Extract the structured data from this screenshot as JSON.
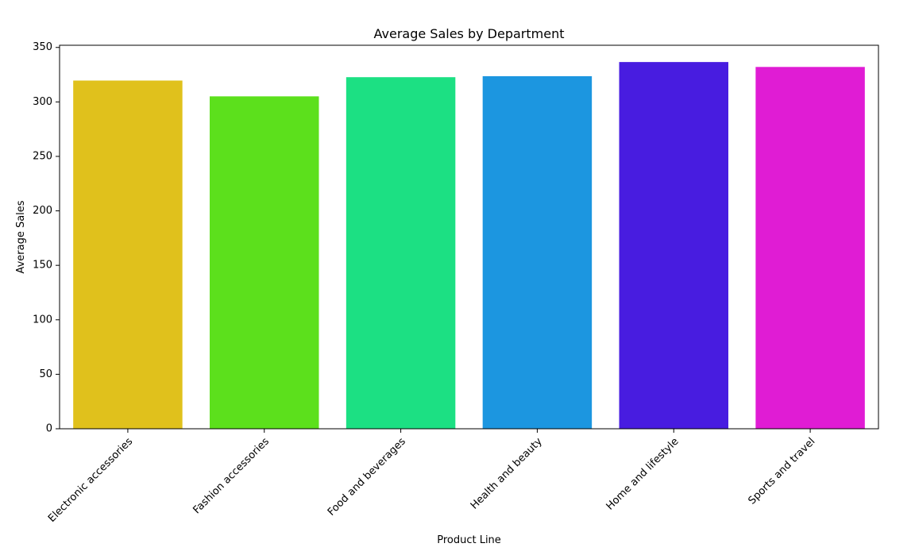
{
  "chart_data": {
    "type": "bar",
    "title": "Average Sales by Department",
    "xlabel": "Product Line",
    "ylabel": "Average Sales",
    "categories": [
      "Electronic accessories",
      "Fashion accessories",
      "Food and beverages",
      "Health and beauty",
      "Home and lifestyle",
      "Sports and travel"
    ],
    "values": [
      319.6,
      305.1,
      322.7,
      323.6,
      336.6,
      332.1
    ],
    "colors": [
      "#e0c11c",
      "#5ce01c",
      "#1ce083",
      "#1c96e0",
      "#481ce0",
      "#e01cd4"
    ],
    "ylim": [
      0,
      352
    ],
    "yticks": [
      0,
      50,
      100,
      150,
      200,
      250,
      300,
      350
    ],
    "grid": false,
    "legend": "none"
  }
}
